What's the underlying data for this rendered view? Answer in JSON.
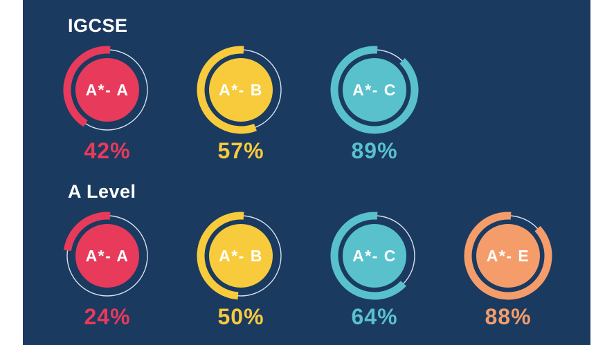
{
  "colors": {
    "background_navy": "#1B3A60",
    "frame_white": "#FFFFFF",
    "ring_track": "#D7E1F0",
    "label_text": "#FFFFFF",
    "red": "#E83A5B",
    "yellow": "#F8CB3C",
    "teal": "#58C1CC",
    "orange": "#F49D6B"
  },
  "chart_data": {
    "type": "pie",
    "variant": "donut-progress-rings",
    "start_angle": "top",
    "direction": "counterclockwise",
    "value_range": [
      0,
      100
    ],
    "groups": [
      {
        "title": "IGCSE",
        "items": [
          {
            "label": "A*- A",
            "value": 42,
            "percent_label": "42%",
            "color": "#E83A5B"
          },
          {
            "label": "A*- B",
            "value": 57,
            "percent_label": "57%",
            "color": "#F8CB3C"
          },
          {
            "label": "A*- C",
            "value": 89,
            "percent_label": "89%",
            "color": "#58C1CC"
          }
        ]
      },
      {
        "title": "A Level",
        "items": [
          {
            "label": "A*- A",
            "value": 24,
            "percent_label": "24%",
            "color": "#E83A5B"
          },
          {
            "label": "A*- B",
            "value": 50,
            "percent_label": "50%",
            "color": "#F8CB3C"
          },
          {
            "label": "A*- C",
            "value": 64,
            "percent_label": "64%",
            "color": "#58C1CC"
          },
          {
            "label": "A*- E",
            "value": 88,
            "percent_label": "88%",
            "color": "#F49D6B"
          }
        ]
      }
    ]
  }
}
